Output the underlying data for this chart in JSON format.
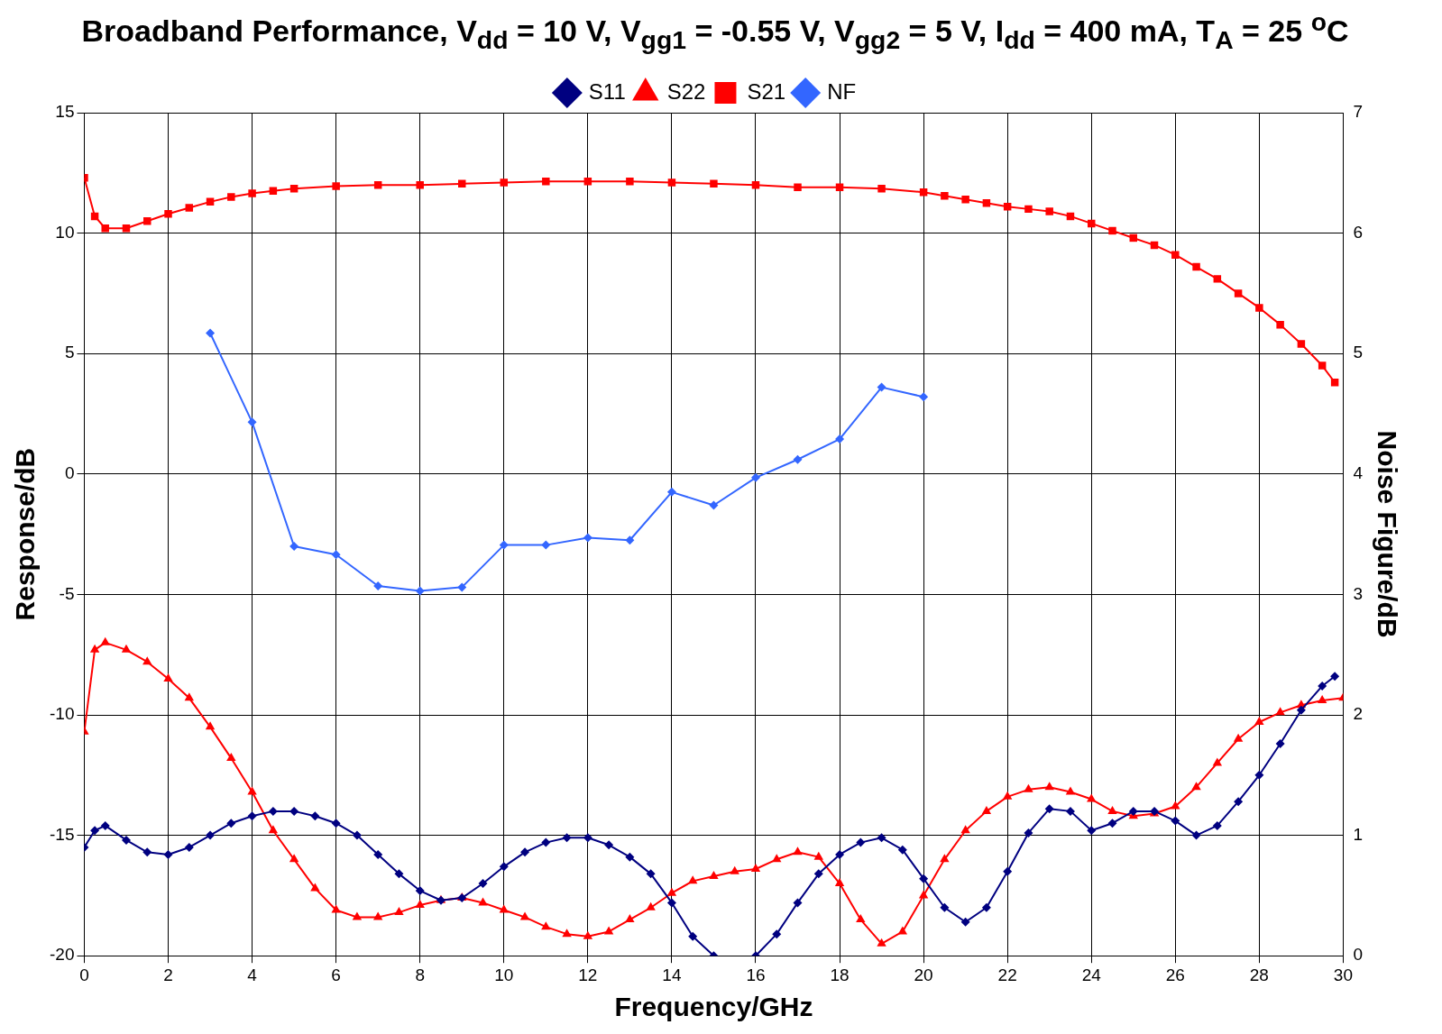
{
  "chart_data": {
    "type": "line",
    "title": "Broadband Performance, V$_{dd}$ = 10 V, V$_{gg1}$ = -0.55 V, V$_{gg2}$ = 5 V, I$_{dd}$ = 400 mA, T$_{A}$ = 25 $^{o}$C",
    "xlabel": "Frequency/GHz",
    "ylabel": "Response/dB",
    "y2label": "Noise Figure/dB",
    "xlim": [
      0,
      30
    ],
    "xticks": [
      0,
      2,
      4,
      6,
      8,
      10,
      12,
      14,
      16,
      18,
      20,
      22,
      24,
      26,
      28,
      30
    ],
    "ylim": [
      -20,
      15
    ],
    "yticks": [
      -20,
      -15,
      -10,
      -5,
      0,
      5,
      10,
      15
    ],
    "y2lim": [
      0,
      7
    ],
    "y2ticks": [
      0,
      1,
      2,
      3,
      4,
      5,
      6,
      7
    ],
    "grid": true,
    "legend": "top",
    "line_style": "solid",
    "series": [
      {
        "name": "S11",
        "color": "#000080",
        "marker": "diamond",
        "x": [
          0,
          0.25,
          0.5,
          1,
          1.5,
          2,
          2.5,
          3,
          3.5,
          4,
          4.5,
          5,
          5.5,
          6,
          6.5,
          7,
          7.5,
          8,
          8.5,
          9,
          9.5,
          10,
          10.5,
          11,
          11.5,
          12,
          12.5,
          13,
          13.5,
          14,
          14.5,
          15,
          15.5,
          16,
          16.5,
          17,
          17.5,
          18,
          18.5,
          19,
          19.5,
          20,
          20.5,
          21,
          21.5,
          22,
          22.5,
          23,
          23.5,
          24,
          24.5,
          25,
          25.5,
          26,
          26.5,
          27,
          27.5,
          28,
          28.5,
          29,
          29.5,
          29.8
        ],
        "values": [
          -15.5,
          -14.8,
          -14.6,
          -15.2,
          -15.7,
          -15.8,
          -15.5,
          -15.0,
          -14.5,
          -14.2,
          -14.0,
          -14.0,
          -14.2,
          -14.5,
          -15.0,
          -15.8,
          -16.6,
          -17.3,
          -17.7,
          -17.6,
          -17.0,
          -16.3,
          -15.7,
          -15.3,
          -15.1,
          -15.1,
          -15.4,
          -15.9,
          -16.6,
          -17.8,
          -19.2,
          -20,
          null,
          -20,
          -19.1,
          -17.8,
          -16.6,
          -15.8,
          -15.3,
          -15.1,
          -15.6,
          -16.8,
          -18.0,
          -18.6,
          -18.0,
          -16.5,
          -14.9,
          -13.9,
          -14.0,
          -14.8,
          -14.5,
          -14.0,
          -14.0,
          -14.4,
          -15.0,
          -14.6,
          -13.6,
          -12.5,
          -11.2,
          -9.8,
          -8.8,
          -8.4
        ]
      },
      {
        "name": "S22",
        "color": "#ff0000",
        "marker": "triangle",
        "x": [
          0,
          0.25,
          0.5,
          1,
          1.5,
          2,
          2.5,
          3,
          3.5,
          4,
          4.5,
          5,
          5.5,
          6,
          6.5,
          7,
          7.5,
          8,
          8.5,
          9,
          9.5,
          10,
          10.5,
          11,
          11.5,
          12,
          12.5,
          13,
          13.5,
          14,
          14.5,
          15,
          15.5,
          16,
          16.5,
          17,
          17.5,
          18,
          18.5,
          19,
          19.5,
          20,
          20.5,
          21,
          21.5,
          22,
          22.5,
          23,
          23.5,
          24,
          24.5,
          25,
          25.5,
          26,
          26.5,
          27,
          27.5,
          28,
          28.5,
          29,
          29.5,
          30
        ],
        "values": [
          -10.7,
          -7.3,
          -7.0,
          -7.3,
          -7.8,
          -8.5,
          -9.3,
          -10.5,
          -11.8,
          -13.2,
          -14.8,
          -16.0,
          -17.2,
          -18.1,
          -18.4,
          -18.4,
          -18.2,
          -17.9,
          -17.7,
          -17.6,
          -17.8,
          -18.1,
          -18.4,
          -18.8,
          -19.1,
          -19.2,
          -19.0,
          -18.5,
          -18.0,
          -17.4,
          -16.9,
          -16.7,
          -16.5,
          -16.4,
          -16.0,
          -15.7,
          -15.9,
          -17.0,
          -18.5,
          -19.5,
          -19.0,
          -17.5,
          -16.0,
          -14.8,
          -14.0,
          -13.4,
          -13.1,
          -13.0,
          -13.2,
          -13.5,
          -14.0,
          -14.2,
          -14.1,
          -13.8,
          -13.0,
          -12.0,
          -11.0,
          -10.3,
          -9.9,
          -9.6,
          -9.4,
          -9.3
        ]
      },
      {
        "name": "S21",
        "color": "#ff0000",
        "marker": "square",
        "x": [
          0,
          0.25,
          0.5,
          1,
          1.5,
          2,
          2.5,
          3,
          3.5,
          4,
          4.5,
          5,
          6,
          7,
          8,
          9,
          10,
          11,
          12,
          13,
          14,
          15,
          16,
          17,
          18,
          19,
          20,
          20.5,
          21,
          21.5,
          22,
          22.5,
          23,
          23.5,
          24,
          24.5,
          25,
          25.5,
          26,
          26.5,
          27,
          27.5,
          28,
          28.5,
          29,
          29.5,
          29.8
        ],
        "values": [
          12.3,
          10.7,
          10.2,
          10.2,
          10.5,
          10.8,
          11.05,
          11.3,
          11.5,
          11.65,
          11.75,
          11.85,
          11.95,
          12.0,
          12.0,
          12.05,
          12.1,
          12.15,
          12.15,
          12.15,
          12.1,
          12.05,
          12.0,
          11.9,
          11.9,
          11.85,
          11.7,
          11.55,
          11.4,
          11.25,
          11.1,
          11.0,
          10.9,
          10.7,
          10.4,
          10.1,
          9.8,
          9.5,
          9.1,
          8.6,
          8.1,
          7.5,
          6.9,
          6.2,
          5.4,
          4.5,
          3.8
        ]
      },
      {
        "name": "NF",
        "color": "#3366ff",
        "marker": "diamond",
        "axis": "y2",
        "x": [
          3,
          4,
          5,
          6,
          7,
          8,
          9,
          10,
          11,
          12,
          13,
          14,
          15,
          16,
          17,
          18,
          19,
          20
        ],
        "values": [
          5.17,
          4.43,
          3.4,
          3.33,
          3.07,
          3.03,
          3.06,
          3.41,
          3.41,
          3.47,
          3.45,
          3.85,
          3.74,
          3.97,
          4.12,
          4.29,
          4.72,
          4.64
        ]
      }
    ]
  }
}
